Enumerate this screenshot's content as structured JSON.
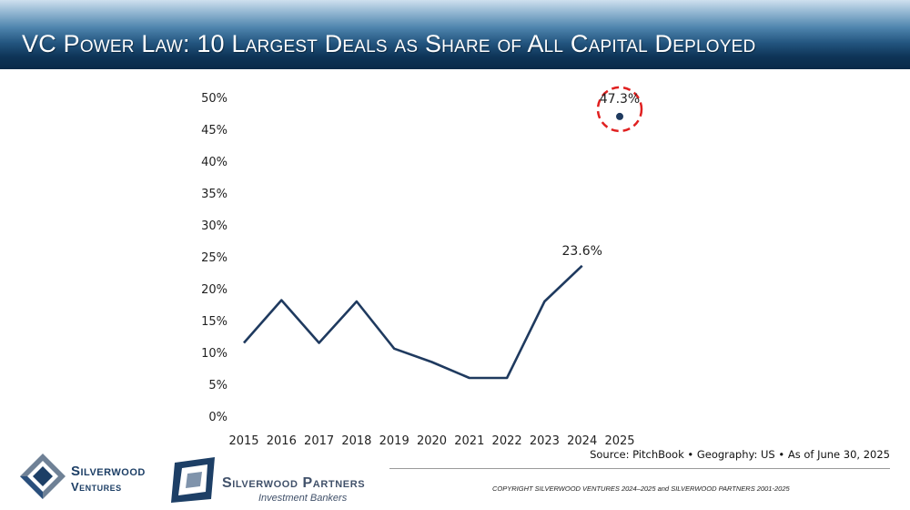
{
  "header": {
    "title": "VC Power Law: 10 Largest Deals as Share of All Capital Deployed"
  },
  "chart_data": {
    "type": "line",
    "title": "VC Power Law: 10 Largest Deals as Share of All Capital Deployed",
    "xlabel": "",
    "ylabel": "",
    "categories": [
      "2015",
      "2016",
      "2017",
      "2018",
      "2019",
      "2020",
      "2021",
      "2022",
      "2023",
      "2024",
      "2025"
    ],
    "series": [
      {
        "name": "Share of capital deployed",
        "values": [
          11.5,
          18.2,
          11.5,
          18.0,
          10.6,
          8.5,
          6.0,
          6.0,
          18.0,
          23.6,
          null
        ]
      },
      {
        "name": "2025 (as of June 30)",
        "values": [
          null,
          null,
          null,
          null,
          null,
          null,
          null,
          null,
          null,
          null,
          47.3
        ]
      }
    ],
    "yticks": [
      "0%",
      "5%",
      "10%",
      "15%",
      "20%",
      "25%",
      "30%",
      "35%",
      "40%",
      "45%",
      "50%"
    ],
    "ylim": [
      0,
      50
    ],
    "grid": false,
    "annotations": [
      {
        "category": "2024",
        "value": 23.6,
        "label": "23.6%"
      },
      {
        "category": "2025",
        "value": 47.3,
        "label": "47.3%",
        "highlight": "dashed-circle"
      }
    ],
    "colors": {
      "line": "#1f3a5f",
      "highlight": "#e02020"
    }
  },
  "footer": {
    "source": "Source: PitchBook • Geography: US • As of June 30, 2025",
    "copyright": "COPYRIGHT SILVERWOOD VENTURES 2024–2025 and SILVERWOOD PARTNERS 2001-2025"
  },
  "logos": {
    "ventures": {
      "line1": "Silverwood",
      "line2": "Ventures"
    },
    "partners": {
      "line1": "Silverwood Partners",
      "line2": "Investment Bankers"
    }
  }
}
